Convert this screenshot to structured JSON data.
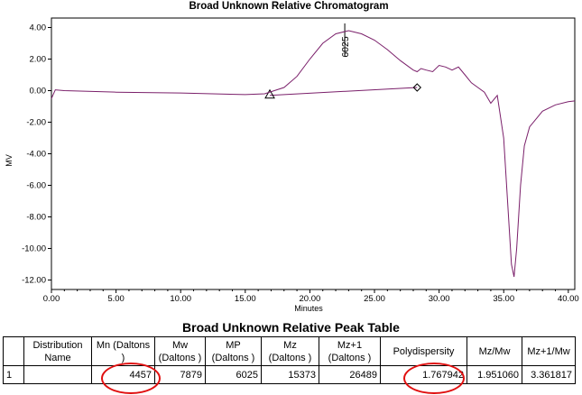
{
  "chart_data": {
    "type": "line",
    "title": "Broad Unknown Relative Chromatogram",
    "xlabel": "Minutes",
    "ylabel": "MV",
    "xlim": [
      0,
      40.5
    ],
    "ylim": [
      -12.6,
      4.6
    ],
    "xticks": [
      "0.00",
      "5.00",
      "10.00",
      "15.00",
      "20.00",
      "25.00",
      "30.00",
      "35.00",
      "40.00"
    ],
    "yticks": [
      "4.00",
      "2.00",
      "0.00",
      "-2.00",
      "-4.00",
      "-6.00",
      "-8.00",
      "-10.00",
      "-12.00"
    ],
    "grid": false,
    "series": [
      {
        "x": [
          0,
          0.3,
          1,
          5,
          10,
          15,
          16.5,
          18,
          19,
          20,
          21,
          22,
          23,
          24,
          25,
          26,
          27,
          28,
          28.3,
          28.6,
          29,
          29.5,
          30,
          30.5,
          31,
          31.5,
          32,
          32.5,
          33,
          33.5,
          34,
          34.5,
          35,
          35.3,
          35.6,
          35.8,
          36,
          36.3,
          36.6,
          37,
          38,
          39,
          40,
          40.5
        ],
        "y": [
          -0.5,
          0.05,
          0,
          -0.1,
          -0.15,
          -0.25,
          -0.2,
          0.2,
          0.9,
          2.0,
          3.0,
          3.6,
          3.8,
          3.6,
          3.2,
          2.6,
          1.9,
          1.3,
          1.2,
          1.4,
          1.3,
          1.2,
          1.6,
          1.5,
          1.3,
          1.5,
          1.0,
          0.5,
          0.2,
          -0.1,
          -0.8,
          -0.3,
          -3.0,
          -7.0,
          -11.0,
          -11.8,
          -10.0,
          -6.0,
          -3.5,
          -2.3,
          -1.3,
          -0.9,
          -0.7,
          -0.65
        ]
      }
    ],
    "peak": {
      "label": "6025",
      "apex_x": 22.7,
      "start_x": 16.9,
      "start_y": -0.3,
      "end_x": 28.3,
      "end_y": 0.2
    }
  },
  "table": {
    "title": "Broad Unknown Relative Peak Table",
    "headers": [
      "",
      "Distribution Name",
      "Mn (Daltons )",
      "Mw (Daltons )",
      "MP (Daltons )",
      "Mz (Daltons )",
      "Mz+1 (Daltons )",
      "Polydispersity",
      "Mz/Mw",
      "Mz+1/Mw"
    ],
    "rows": [
      [
        "1",
        "",
        "4457",
        "7879",
        "6025",
        "15373",
        "26489",
        "1.767942",
        "1.951060",
        "3.361817"
      ]
    ],
    "highlight_color": "#e01010"
  }
}
